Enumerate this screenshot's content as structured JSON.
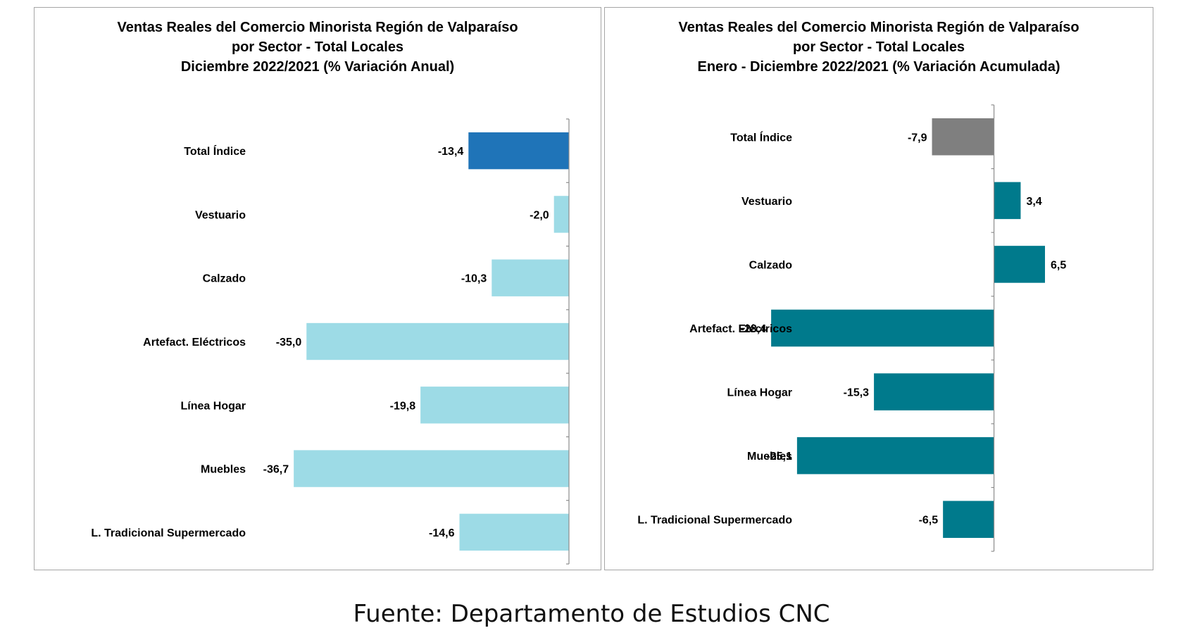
{
  "chart_data": [
    {
      "type": "bar",
      "orientation": "horizontal",
      "title_lines": [
        "Ventas Reales del Comercio Minorista Región de Valparaíso",
        "por Sector - Total Locales",
        "Diciembre 2022/2021 (% Variación Anual)"
      ],
      "categories": [
        "Total Índice",
        "Vestuario",
        "Calzado",
        "Artefact. Eléctricos",
        "Línea Hogar",
        "Muebles",
        "L. Tradicional Supermercado"
      ],
      "values": [
        -13.4,
        -2.0,
        -10.3,
        -35.0,
        -19.8,
        -36.7,
        -14.6
      ],
      "data_labels": [
        "-13,4",
        "-2,0",
        "-10,3",
        "-35,0",
        "-19,8",
        "-36,7",
        "-14,6"
      ],
      "colors": [
        "#1f74b8",
        "#9ddbe6",
        "#9ddbe6",
        "#9ddbe6",
        "#9ddbe6",
        "#9ddbe6",
        "#9ddbe6"
      ],
      "xlim": [
        -40,
        0
      ],
      "grid": false,
      "legend": "none"
    },
    {
      "type": "bar",
      "orientation": "horizontal",
      "title_lines": [
        "Ventas Reales del Comercio Minorista Región de Valparaíso",
        "por Sector  - Total Locales",
        "Enero - Diciembre 2022/2021 (% Variación Acumulada)"
      ],
      "categories": [
        "Total Índice",
        "Vestuario",
        "Calzado",
        "Artefact. Eléctricos",
        "Línea Hogar",
        "Muebles",
        "L. Tradicional Supermercado"
      ],
      "values": [
        -7.9,
        3.4,
        6.5,
        -28.4,
        -15.3,
        -25.1,
        -6.5
      ],
      "data_labels": [
        "-7,9",
        "3,4",
        "6,5",
        "-28,4",
        "-15,3",
        "-25,1",
        "-6,5"
      ],
      "colors": [
        "#7f7f7f",
        "#007a8c",
        "#007a8c",
        "#007a8c",
        "#007a8c",
        "#007a8c",
        "#007a8c"
      ],
      "xlim": [
        -32,
        10
      ],
      "grid": false,
      "legend": "none"
    }
  ],
  "source": "Fuente: Departamento de Estudios CNC"
}
